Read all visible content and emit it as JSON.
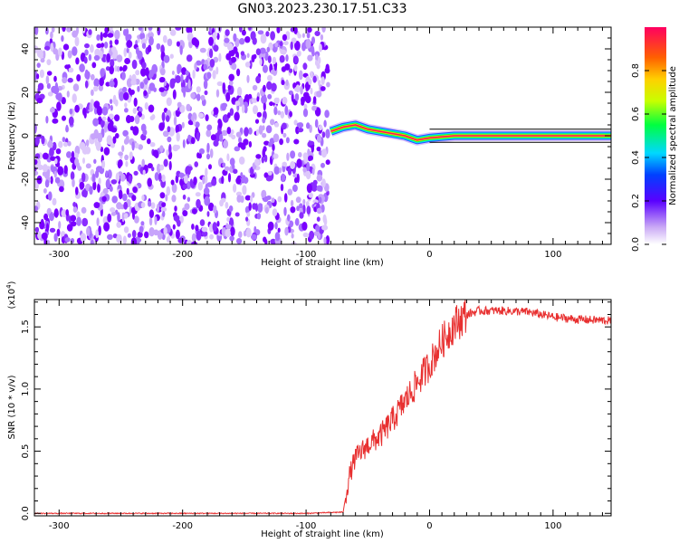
{
  "figure": {
    "title": "GN03.2023.230.17.51.C33"
  },
  "chart_data": [
    {
      "type": "heatmap",
      "xlabel": "Height of straight line (km)",
      "ylabel": "Frequency (Hz)",
      "xlim": [
        -320,
        147
      ],
      "ylim": [
        -50,
        50
      ],
      "x_ticks": [
        -300,
        -200,
        -100,
        0,
        100
      ],
      "y_ticks": [
        -40,
        -20,
        0,
        20,
        40
      ],
      "colorbar": {
        "label": "Normalized spectral amplitude",
        "range": [
          0,
          1
        ],
        "ticks": [
          "0.0",
          "0.2",
          "0.4",
          "0.6",
          "0.8"
        ]
      },
      "noise_region_end_km": -82,
      "ridge": {
        "x": [
          -80,
          -70,
          -60,
          -50,
          -40,
          -30,
          -20,
          -10,
          0,
          20,
          60,
          100,
          147
        ],
        "y": [
          2,
          4,
          5,
          3,
          2,
          1,
          0,
          -2,
          -1,
          0,
          0,
          0,
          0
        ]
      }
    },
    {
      "type": "line",
      "xlabel": "Height of straight line (km)",
      "ylabel": "SNR (10 * v/v)",
      "y_multiplier": "(x10",
      "y_multiplier_exp": "4",
      "y_multiplier_close": ")",
      "xlim": [
        -320,
        147
      ],
      "ylim": [
        -0.02,
        1.72
      ],
      "x_ticks": [
        -300,
        -200,
        -100,
        0,
        100
      ],
      "y_ticks": [
        "0.0",
        "0.5",
        "1.0",
        "1.5"
      ],
      "series": [
        {
          "color": "#e83030",
          "x": [
            -320,
            -100,
            -70,
            -65,
            -60,
            -50,
            -40,
            -30,
            -20,
            -10,
            0,
            10,
            20,
            30,
            40,
            60,
            80,
            100,
            120,
            147
          ],
          "y": [
            0.0,
            0.0,
            0.01,
            0.3,
            0.45,
            0.55,
            0.62,
            0.75,
            0.9,
            1.05,
            1.2,
            1.38,
            1.52,
            1.6,
            1.63,
            1.63,
            1.62,
            1.58,
            1.56,
            1.55
          ]
        }
      ]
    }
  ]
}
